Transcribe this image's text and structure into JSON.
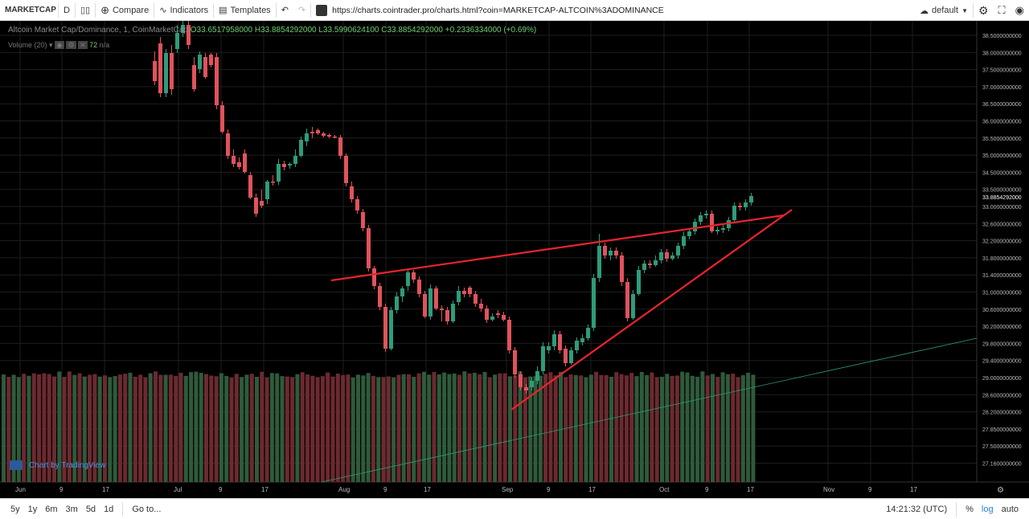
{
  "toolbar": {
    "symbol": "MARKETCAP",
    "interval": "D",
    "compare": "Compare",
    "indicators": "Indicators",
    "templates": "Templates",
    "url": "https://charts.cointrader.pro/charts.html?coin=MARKETCAP-ALTCOIN%3ADOMINANCE",
    "layout": "default"
  },
  "legend": {
    "name": "Altcoin Market Cap/Dominance, 1, CoinMarketCap",
    "o": "O33.6517958000",
    "h": "H33.8854292000",
    "l": "L33.5990624100",
    "c": "C33.8854292000",
    "chg": "+0.2336334000 (+0.69%)",
    "volume": "Volume (20)",
    "vol_val": "72",
    "vol_na": "n/a"
  },
  "price_axis": [
    "38.5000000000",
    "38.0000000000",
    "37.5000000000",
    "37.0000000000",
    "36.5000000000",
    "36.0000000000",
    "35.5000000000",
    "35.0000000000",
    "34.5000000000",
    "33.5000000000",
    "33.0000000000",
    "32.6000000000",
    "32.2000000000",
    "31.8000000000",
    "31.4000000000",
    "31.0000000000",
    "30.6000000000",
    "30.2000000000",
    "29.8000000000",
    "29.4000000000",
    "29.0000000000",
    "28.6000000000",
    "28.2000000000",
    "27.8500000000",
    "27.5000000000",
    "27.1600000000"
  ],
  "last_price": "33.8854292000",
  "time_axis": [
    "Jun",
    "9",
    "17",
    "Jul",
    "9",
    "17",
    "Aug",
    "9",
    "17",
    "Sep",
    "9",
    "17",
    "Oct",
    "9",
    "17",
    "Nov",
    "9",
    "17"
  ],
  "watermark": "Chart by TradingView",
  "bottombar": {
    "ranges": [
      "5y",
      "1y",
      "6m",
      "3m",
      "5d",
      "1d"
    ],
    "goto": "Go to...",
    "time": "14:21:32 (UTC)",
    "pct": "%",
    "log": "log",
    "auto": "auto"
  },
  "colors": {
    "up": "#2e9c7a",
    "down": "#e0535c",
    "line": "#e8242c",
    "vol_up": "#2f5a3b",
    "vol_down": "#6b2a30",
    "bg": "#000000"
  }
}
